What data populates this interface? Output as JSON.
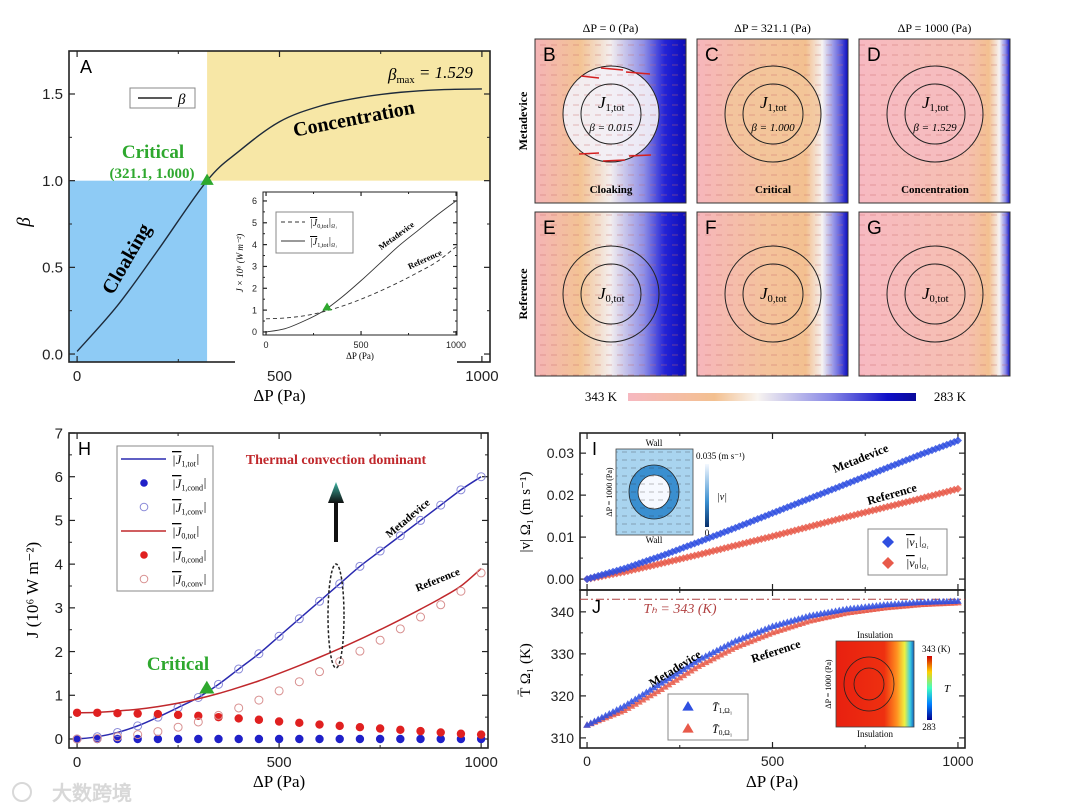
{
  "watermark": "大数跨境",
  "colors": {
    "cloaking_region": "#8ecbf5",
    "concentration_region": "#f7e7a6",
    "critical": "#2ea82e",
    "metadevice": "#2a2ab0",
    "reference": "#c0282c",
    "annotation_red": "#c0282c"
  },
  "chart_data": [
    {
      "id": "A",
      "type": "line",
      "panel_label": "A",
      "xlabel": "ΔP (Pa)",
      "ylabel": "β",
      "xlim": [
        -20,
        1020
      ],
      "ylim": [
        -0.046,
        1.748
      ],
      "xticks": [
        0,
        500,
        1000
      ],
      "yticks": [
        "0.0",
        "0.5",
        "1.0",
        "1.5"
      ],
      "legend": [
        "β"
      ],
      "legend_position": "top-left",
      "x": [
        0,
        100,
        200,
        321.1,
        400,
        500,
        600,
        700,
        800,
        900,
        1000
      ],
      "beta": [
        0.015,
        0.28,
        0.6,
        1.0,
        1.17,
        1.34,
        1.43,
        1.48,
        1.51,
        1.525,
        1.529
      ],
      "regions": [
        {
          "name": "Cloaking",
          "x_range": [
            0,
            321.1
          ],
          "y_range": [
            0,
            1.0
          ]
        },
        {
          "name": "Concentration",
          "x_range": [
            321.1,
            1000
          ],
          "y_range": [
            1.0,
            1.75
          ]
        }
      ],
      "annotations": {
        "critical_label": "Critical",
        "critical_point_label": "(321.1, 1.000)",
        "critical_point": [
          321.1,
          1.0
        ],
        "beta_max_main": "β",
        "beta_max_sub": "max",
        "beta_max_value": " = 1.529"
      },
      "inset": {
        "xlabel": "ΔP (Pa)",
        "ylabel": "J × 10⁶ (W m⁻²)",
        "xlim": [
          -16,
          1005
        ],
        "ylim": [
          -0.14,
          6.41
        ],
        "xticks": [
          0,
          500,
          1000
        ],
        "yticks": [
          0,
          1,
          2,
          3,
          4,
          5,
          6
        ],
        "legend": [
          {
            "main": "|J",
            "sub": "0,tot",
            "tail": "|",
            "sub2": "Ω₁",
            "style": "dashed"
          },
          {
            "main": "|J",
            "sub": "1,tot",
            "tail": "|",
            "sub2": "Ω₁",
            "style": "solid"
          }
        ],
        "labels": {
          "metadevice": "Metadevice",
          "reference": "Reference"
        },
        "x": [
          0,
          100,
          200,
          300,
          400,
          500,
          600,
          700,
          800,
          900,
          1000
        ],
        "J1_tot": [
          0,
          0.15,
          0.5,
          0.95,
          1.6,
          2.35,
          3.15,
          3.95,
          4.65,
          5.35,
          6.0
        ],
        "J0_tot": [
          0.6,
          0.64,
          0.74,
          0.92,
          1.18,
          1.5,
          1.87,
          2.28,
          2.73,
          3.22,
          3.9
        ]
      }
    },
    {
      "id": "B-G",
      "type": "heatmap",
      "column_titles": [
        "ΔP = 0 (Pa)",
        "ΔP = 321.1 (Pa)",
        "ΔP = 1000 (Pa)"
      ],
      "row_titles": [
        "Metadevice",
        "Reference"
      ],
      "colorbar": {
        "left": "343 K",
        "right": "283 K"
      },
      "panels": [
        {
          "label": "B",
          "flux_main": "J",
          "flux_sub": "1,tot",
          "beta": "β = 0.015",
          "regime": "Cloaking"
        },
        {
          "label": "C",
          "flux_main": "J",
          "flux_sub": "1,tot",
          "beta": "β = 1.000",
          "regime": "Critical"
        },
        {
          "label": "D",
          "flux_main": "J",
          "flux_sub": "1,tot",
          "beta": "β = 1.529",
          "regime": "Concentration"
        },
        {
          "label": "E",
          "flux_main": "J",
          "flux_sub": "0,tot"
        },
        {
          "label": "F",
          "flux_main": "J",
          "flux_sub": "0,tot"
        },
        {
          "label": "G",
          "flux_main": "J",
          "flux_sub": "0,tot"
        }
      ]
    },
    {
      "id": "H",
      "type": "line",
      "panel_label": "H",
      "xlabel": "ΔP (Pa)",
      "ylabel": "J (10⁶ W m⁻²)",
      "xlim": [
        -20,
        1017
      ],
      "ylim": [
        -0.206,
        7.0
      ],
      "xticks": [
        0,
        500,
        1000
      ],
      "yticks": [
        0,
        1,
        2,
        3,
        4,
        5,
        6,
        7
      ],
      "legend_position": "top-left",
      "title_annotation": "Thermal convection dominant",
      "critical_label": "Critical",
      "critical_point": [
        321.1,
        1.15
      ],
      "labels": {
        "metadevice": "Metadevice",
        "reference": "Reference"
      },
      "x": [
        0,
        50,
        100,
        150,
        200,
        250,
        300,
        350,
        400,
        450,
        500,
        550,
        600,
        650,
        700,
        750,
        800,
        850,
        900,
        950,
        1000
      ],
      "series": [
        {
          "name": "J1,tot",
          "main": "|J",
          "sub": "1,tot",
          "tail": "|",
          "kind": "line",
          "color": "#2a2ab0",
          "values": [
            0,
            0.05,
            0.15,
            0.3,
            0.5,
            0.72,
            0.95,
            1.25,
            1.6,
            1.95,
            2.35,
            2.75,
            3.15,
            3.55,
            3.95,
            4.3,
            4.65,
            5.0,
            5.35,
            5.7,
            6.0
          ]
        },
        {
          "name": "J1,cond",
          "main": "|J",
          "sub": "1,cond",
          "tail": "|",
          "kind": "filled",
          "color": "#2020c8",
          "values": [
            0,
            0,
            0,
            0,
            0,
            0,
            0,
            0,
            0,
            0,
            0,
            0,
            0,
            0,
            0,
            0,
            0,
            0,
            0,
            0,
            0
          ]
        },
        {
          "name": "J1,conv",
          "main": "|J",
          "sub": "1,conv",
          "tail": "|",
          "kind": "open",
          "color": "#8a8ad8",
          "values": [
            0,
            0.05,
            0.15,
            0.3,
            0.5,
            0.72,
            0.95,
            1.25,
            1.6,
            1.95,
            2.35,
            2.75,
            3.15,
            3.55,
            3.95,
            4.3,
            4.65,
            5.0,
            5.35,
            5.7,
            6.0
          ]
        },
        {
          "name": "J0,tot",
          "main": "|J",
          "sub": "0,tot",
          "tail": "|",
          "kind": "line",
          "color": "#c0282c",
          "values": [
            0.6,
            0.61,
            0.64,
            0.68,
            0.74,
            0.82,
            0.92,
            1.04,
            1.18,
            1.33,
            1.5,
            1.68,
            1.87,
            2.07,
            2.28,
            2.5,
            2.73,
            2.97,
            3.22,
            3.5,
            3.9
          ]
        },
        {
          "name": "J0,cond",
          "main": "|J",
          "sub": "0,cond",
          "tail": "|",
          "kind": "filled",
          "color": "#e02020",
          "values": [
            0.6,
            0.6,
            0.59,
            0.58,
            0.57,
            0.55,
            0.53,
            0.5,
            0.47,
            0.44,
            0.4,
            0.37,
            0.33,
            0.3,
            0.27,
            0.24,
            0.21,
            0.18,
            0.15,
            0.12,
            0.1
          ]
        },
        {
          "name": "J0,conv",
          "main": "|J",
          "sub": "0,conv",
          "tail": "|",
          "kind": "open",
          "color": "#d89090",
          "values": [
            0,
            0.01,
            0.05,
            0.1,
            0.17,
            0.27,
            0.39,
            0.54,
            0.71,
            0.89,
            1.1,
            1.31,
            1.54,
            1.77,
            2.01,
            2.26,
            2.52,
            2.79,
            3.07,
            3.38,
            3.8
          ]
        }
      ]
    },
    {
      "id": "I",
      "type": "scatter",
      "panel_label": "I",
      "ylabel": "|v| Ω₁ (m s⁻¹)",
      "xlim": [
        -19,
        1019
      ],
      "ylim": [
        -0.0026,
        0.0348
      ],
      "xticks": [
        0,
        500,
        1000
      ],
      "yticks": [
        "0.00",
        "0.01",
        "0.02",
        "0.03"
      ],
      "legend_position": "bottom-right",
      "labels": {
        "metadevice": "Metadevice",
        "reference": "Reference"
      },
      "inset": {
        "top": "Wall",
        "bottom": "Wall",
        "side": "ΔP = 1000 (Pa)",
        "cbar_max": "0.035 (m s⁻¹)",
        "cbar_min": "0",
        "cbar_label": "|v|"
      },
      "x": [
        0,
        100,
        200,
        300,
        400,
        500,
        600,
        700,
        800,
        900,
        1000
      ],
      "series": [
        {
          "name": "v1",
          "main": "|v",
          "sub": "1",
          "tail": "|",
          "sub2": "Ω₁",
          "color": "#2f4fe0",
          "values": [
            0,
            0.0025,
            0.0055,
            0.0088,
            0.0122,
            0.0157,
            0.0192,
            0.0227,
            0.0262,
            0.0297,
            0.033
          ]
        },
        {
          "name": "v0",
          "main": "|v",
          "sub": "0",
          "tail": "|",
          "sub2": "Ω₁",
          "color": "#e85a4a",
          "values": [
            0,
            0.0017,
            0.0037,
            0.0058,
            0.008,
            0.0102,
            0.0125,
            0.0148,
            0.017,
            0.0192,
            0.0215
          ]
        }
      ]
    },
    {
      "id": "J",
      "type": "scatter",
      "panel_label": "J",
      "xlabel": "ΔP (Pa)",
      "ylabel": "T̄ Ω₁ (K)",
      "xlim": [
        -19,
        1019
      ],
      "ylim": [
        307.6,
        345.2
      ],
      "xticks": [
        0,
        500,
        1000
      ],
      "yticks": [
        310,
        320,
        330,
        340
      ],
      "legend_position": "bottom-center",
      "th_line": 343,
      "th_label": "Tₕ = 343 (K)",
      "labels": {
        "metadevice": "Metadevice",
        "reference": "Reference"
      },
      "inset": {
        "top": "Insulation",
        "bottom": "Insulation",
        "side": "ΔP = 1000 (Pa)",
        "cbar_max": "343 (K)",
        "cbar_min": "283",
        "cbar_label": "T"
      },
      "x": [
        0,
        100,
        200,
        300,
        400,
        500,
        600,
        700,
        800,
        900,
        1000
      ],
      "series": [
        {
          "name": "T1",
          "main": "T̄",
          "sub": "1,Ω₁",
          "color": "#2f4fe0",
          "values": [
            313,
            317.5,
            323,
            328.5,
            333,
            336.5,
            339,
            340.6,
            341.6,
            342.2,
            342.5
          ]
        },
        {
          "name": "T0",
          "main": "T̄",
          "sub": "0,Ω₁",
          "color": "#e85a4a",
          "values": [
            313,
            316.5,
            321.5,
            327,
            331.5,
            335,
            337.8,
            339.7,
            340.9,
            341.7,
            342.1
          ]
        }
      ]
    }
  ]
}
